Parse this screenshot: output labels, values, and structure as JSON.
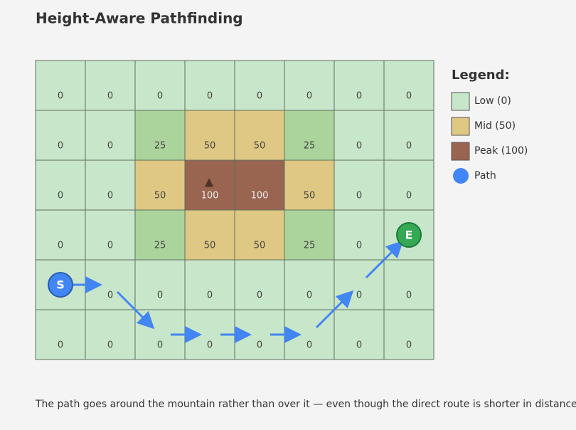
{
  "title": "Height-Aware Pathfinding",
  "grid": {
    "rows": [
      [
        0,
        0,
        0,
        0,
        0,
        0,
        0,
        0
      ],
      [
        0,
        0,
        25,
        50,
        50,
        25,
        0,
        0
      ],
      [
        0,
        0,
        50,
        100,
        100,
        50,
        0,
        0
      ],
      [
        0,
        0,
        25,
        50,
        50,
        25,
        0,
        null
      ],
      [
        null,
        0,
        0,
        0,
        0,
        0,
        0,
        0
      ],
      [
        0,
        0,
        0,
        0,
        0,
        0,
        0,
        0
      ]
    ],
    "cell_colors": {
      "0": "#c8e6c9",
      "25": "#abd49c",
      "50": "#dfc883",
      "100": "#996450"
    },
    "start": "S",
    "end": "E",
    "peak_marker": "▲"
  },
  "legend": {
    "title": "Legend:",
    "items": [
      {
        "label": "Low (0)",
        "color": "#c8e6c9"
      },
      {
        "label": "Mid (50)",
        "color": "#dfc883"
      },
      {
        "label": "Peak (100)",
        "color": "#996450"
      },
      {
        "label": "Path",
        "color": "#4285f4"
      }
    ]
  },
  "caption": "The path goes around the mountain rather than over it — even though the direct route is shorter in distance."
}
